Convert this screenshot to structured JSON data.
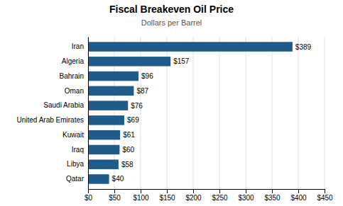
{
  "chart_data": {
    "type": "bar",
    "orientation": "horizontal",
    "title": "Fiscal Breakeven Oil Price",
    "subtitle": "Dollars per Barrel",
    "categories": [
      "Iran",
      "Algeria",
      "Bahrain",
      "Oman",
      "Saudi Arabia",
      "United Arab Emirates",
      "Kuwait",
      "Iraq",
      "Libya",
      "Qatar"
    ],
    "values": [
      389,
      157,
      96,
      87,
      76,
      69,
      61,
      60,
      58,
      40
    ],
    "value_labels": [
      "$389",
      "$157",
      "$96",
      "$87",
      "$76",
      "$69",
      "$61",
      "$60",
      "$58",
      "$40"
    ],
    "color": "#1F5C8B",
    "xlim": [
      0,
      450
    ],
    "xticks": [
      {
        "value": 0,
        "label": "$0"
      },
      {
        "value": 50,
        "label": "$50"
      },
      {
        "value": 100,
        "label": "$100"
      },
      {
        "value": 150,
        "label": "$150"
      },
      {
        "value": 200,
        "label": "$200"
      },
      {
        "value": 250,
        "label": "$250"
      },
      {
        "value": 300,
        "label": "$300"
      },
      {
        "value": 350,
        "label": "$350"
      },
      {
        "value": 400,
        "label": "$400"
      },
      {
        "value": 450,
        "label": "$450"
      }
    ],
    "grid": true,
    "data_labels": true
  }
}
